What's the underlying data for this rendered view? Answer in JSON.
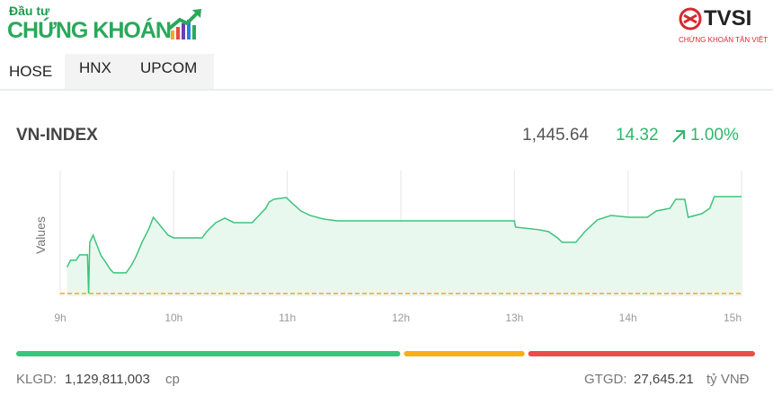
{
  "header": {
    "brand_small": "Đầu tư",
    "brand_large": "CHỨNG KHOÁN",
    "partner": "TVSI",
    "partner_sub": "CHỨNG KHOÁN TÂN VIỆT"
  },
  "tabs": [
    "HOSE",
    "HNX",
    "UPCOM"
  ],
  "index": {
    "name": "VN-INDEX",
    "value": "1,445.64",
    "change": "14.32",
    "change_pct": "1.00%"
  },
  "chart_data": {
    "type": "area",
    "y_label": "Values",
    "color": "#3cc47c",
    "fill": "#e9f8ef",
    "x": [
      9.06,
      9.09,
      9.14,
      9.17,
      9.24,
      9.25,
      9.26,
      9.29,
      9.32,
      9.36,
      9.4,
      9.44,
      9.47,
      9.58,
      9.63,
      9.67,
      9.72,
      9.78,
      9.82,
      9.86,
      9.91,
      9.95,
      10.0,
      10.25,
      10.29,
      10.37,
      10.45,
      10.53,
      10.69,
      10.75,
      10.81,
      10.84,
      10.88,
      10.99,
      11.04,
      11.12,
      11.2,
      11.32,
      11.44,
      13.0,
      13.01,
      13.22,
      13.3,
      13.38,
      13.42,
      13.54,
      13.62,
      13.73,
      13.85,
      14.01,
      14.17,
      14.25,
      14.37,
      14.42,
      14.5,
      14.53,
      14.65,
      14.72,
      14.76,
      15.0
    ],
    "values": [
      1435.17,
      1436.23,
      1436.23,
      1437.02,
      1437.02,
      1431.32,
      1438.88,
      1439.94,
      1438.61,
      1436.89,
      1435.96,
      1434.9,
      1434.37,
      1434.37,
      1435.56,
      1436.89,
      1438.88,
      1440.87,
      1442.59,
      1441.8,
      1440.74,
      1439.94,
      1439.54,
      1439.54,
      1440.47,
      1441.8,
      1442.46,
      1441.8,
      1441.8,
      1442.86,
      1443.92,
      1444.85,
      1445.25,
      1445.51,
      1444.72,
      1443.52,
      1442.86,
      1442.33,
      1442.06,
      1442.06,
      1441.13,
      1440.74,
      1440.47,
      1439.54,
      1438.88,
      1438.88,
      1440.47,
      1442.2,
      1442.86,
      1442.59,
      1442.59,
      1443.52,
      1443.92,
      1445.25,
      1445.25,
      1442.59,
      1443.12,
      1443.92,
      1445.64,
      1445.64
    ],
    "reference": 1431.32,
    "reference_color": "#f5a623",
    "xlim": [
      9,
      15
    ],
    "ylim": [
      1430.9,
      1449.5
    ],
    "xticks": [
      {
        "value": 9,
        "label": "9h"
      },
      {
        "value": 10,
        "label": "10h"
      },
      {
        "value": 11,
        "label": "11h"
      },
      {
        "value": 12,
        "label": "12h"
      },
      {
        "value": 13,
        "label": "13h"
      },
      {
        "value": 14,
        "label": "14h"
      },
      {
        "value": 15,
        "label": "15h"
      }
    ],
    "grid": true
  },
  "market_breadth": {
    "values": [
      52.5,
      16.5,
      31
    ],
    "colors": [
      "#3cc47c",
      "#f5b014",
      "#ef4b4b"
    ]
  },
  "footer": {
    "volume_label": "KLGD:",
    "volume": "1,129,811,003",
    "volume_unit": "cp",
    "turnover_label": "GTGD:",
    "turnover": "27,645.21",
    "turnover_unit": "tỷ VNĐ"
  }
}
